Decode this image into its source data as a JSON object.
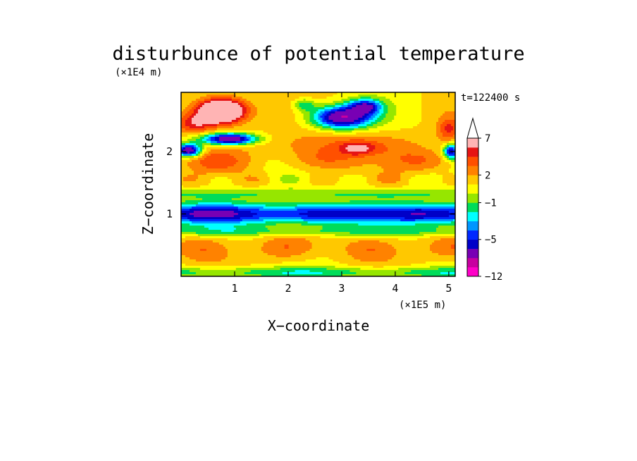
{
  "chart_data": {
    "type": "heatmap",
    "title": "disturbunce of potential temperature",
    "time_label": "t=122400 s",
    "xlabel": "X−coordinate",
    "ylabel": "Z−coordinate",
    "x_unit": "(×1E5 m)",
    "y_unit": "(×1E4 m)",
    "xlim": [
      0,
      5.12
    ],
    "ylim": [
      0,
      2.95
    ],
    "x_ticks": [
      "1",
      "2",
      "3",
      "4",
      "5"
    ],
    "y_ticks": [
      "1",
      "2"
    ],
    "colorbar": {
      "levels": [
        -12,
        -10,
        -8,
        -6,
        -5,
        -4,
        -3,
        -2,
        -1,
        0,
        1,
        2,
        3,
        4,
        5,
        7,
        9
      ],
      "labels": [
        "7",
        "2",
        "−1",
        "−5",
        "−12"
      ],
      "colors": [
        "#ff00c8",
        "#c800a0",
        "#7800b4",
        "#0000c8",
        "#0028ff",
        "#0096ff",
        "#00ffff",
        "#00dc5a",
        "#96e600",
        "#ffff00",
        "#ffc800",
        "#ff8200",
        "#ff5000",
        "#e61414",
        "#ffb4b4"
      ],
      "over_color": "#ffffff"
    },
    "features": [
      {
        "x": 0.75,
        "z": 2.65,
        "value": 8.5
      },
      {
        "x": 0.2,
        "z": 2.45,
        "value": 4.5
      },
      {
        "x": 0.15,
        "z": 2.0,
        "value": -5.5
      },
      {
        "x": 0.9,
        "z": 2.2,
        "value": -5
      },
      {
        "x": 2.95,
        "z": 2.55,
        "value": -6
      },
      {
        "x": 3.3,
        "z": 2.7,
        "value": -7
      },
      {
        "x": 5.0,
        "z": 2.0,
        "value": -5
      },
      {
        "x": 3.3,
        "z": 2.05,
        "value": 4
      },
      {
        "x": 2.8,
        "z": 2.15,
        "value": 3
      },
      {
        "x": 5.0,
        "z": 2.3,
        "value": 4
      },
      {
        "x": 2.6,
        "z": 1.05,
        "value": -5.5
      },
      {
        "x": 0.9,
        "z": 0.95,
        "value": -5
      },
      {
        "x": 4.5,
        "z": 1.0,
        "value": -5
      },
      {
        "x": 1.2,
        "z": 0.5,
        "value": 1
      },
      {
        "x": 3.0,
        "z": 0.45,
        "value": 1
      },
      {
        "x": 4.3,
        "z": 0.45,
        "value": 1
      }
    ]
  }
}
